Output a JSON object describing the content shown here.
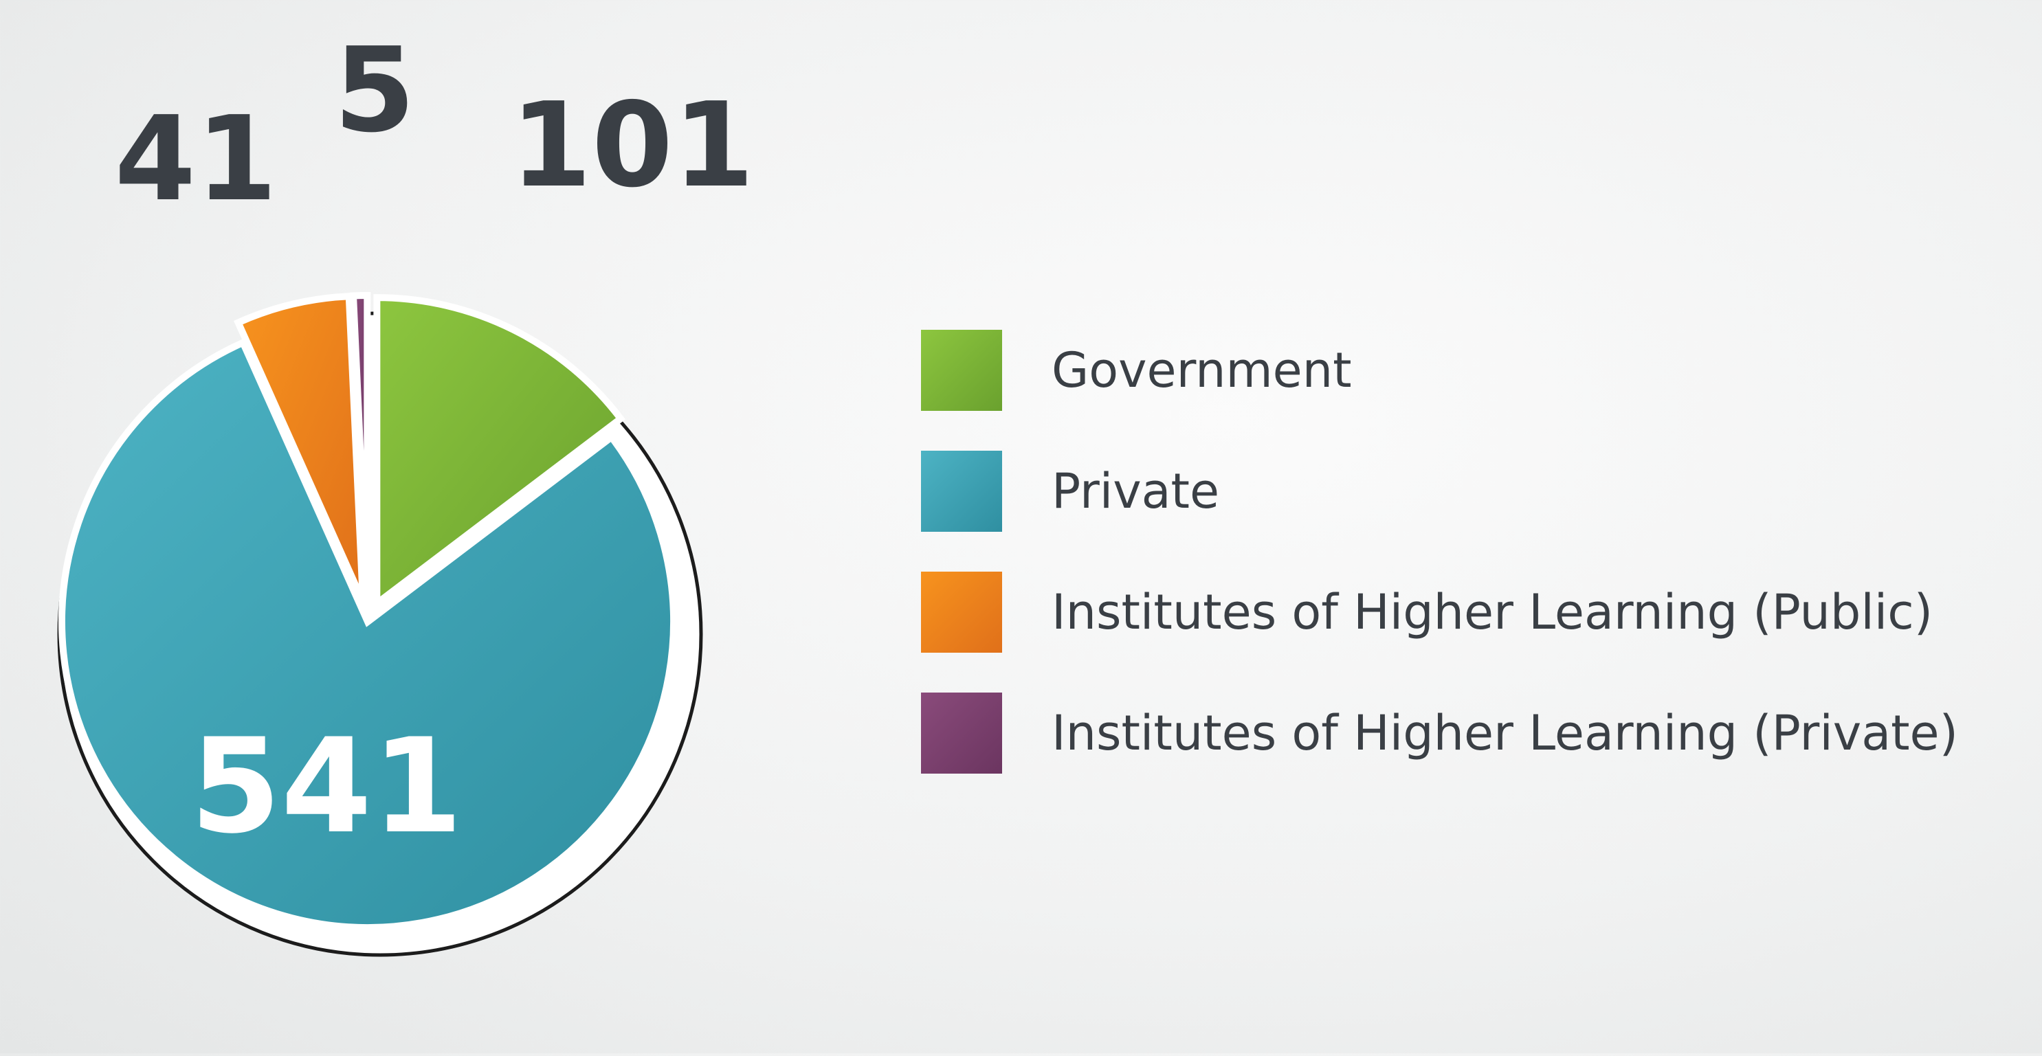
{
  "chart_data": {
    "type": "pie",
    "title": "",
    "slices": [
      {
        "label": "Government",
        "value": 101,
        "color": "#8dc63f",
        "color_dark": "#6aa12e",
        "exploded": true
      },
      {
        "label": "Private",
        "value": 541,
        "color": "#4db3c4",
        "color_dark": "#2f8fa1",
        "exploded": false
      },
      {
        "label": "Institutes of Higher Learning (Public)",
        "value": 41,
        "color": "#f7931e",
        "color_dark": "#e0701a",
        "exploded": true
      },
      {
        "label": "Institutes of Higher Learning (Private)",
        "value": 5,
        "color": "#8a4b7b",
        "color_dark": "#6b3560",
        "exploded": true
      }
    ],
    "data_labels": [
      "101",
      "541",
      "41",
      "5"
    ],
    "legend_position": "right",
    "label_color_outside": "#3a3f45",
    "label_color_inside": "#ffffff"
  }
}
